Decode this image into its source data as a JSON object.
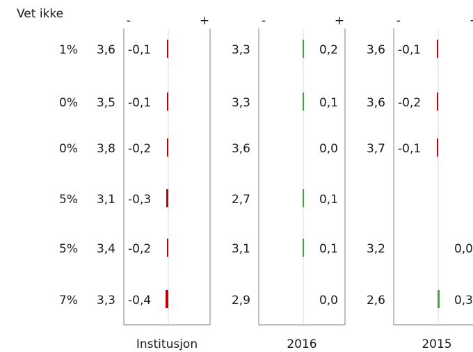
{
  "chart_data": {
    "type": "bar",
    "header_label": "Vet ikke",
    "neg_sign": "-",
    "pos_sign": "+",
    "vet_ikke": [
      "1%",
      "0%",
      "0%",
      "5%",
      "5%",
      "7%"
    ],
    "panels": [
      {
        "name": "Institusjon",
        "scores": [
          "3,6",
          "3,5",
          "3,8",
          "3,1",
          "3,4",
          "3,3"
        ],
        "deltas": [
          -0.1,
          -0.1,
          -0.2,
          -0.3,
          -0.2,
          -0.4
        ],
        "delta_labels": [
          "-0,1",
          "-0,1",
          "-0,2",
          "-0,3",
          "-0,2",
          "-0,4"
        ]
      },
      {
        "name": "2016",
        "scores": [
          "3,3",
          "3,3",
          "3,6",
          "2,7",
          "3,1",
          "2,9"
        ],
        "deltas": [
          0.2,
          0.1,
          0.0,
          0.1,
          0.1,
          0.0
        ],
        "delta_labels": [
          "0,2",
          "0,1",
          "0,0",
          "0,1",
          "0,1",
          "0,0"
        ]
      },
      {
        "name": "2015",
        "scores": [
          "3,6",
          "3,6",
          "3,7",
          null,
          "3,2",
          "2,6"
        ],
        "deltas": [
          -0.1,
          -0.2,
          -0.1,
          null,
          0.0,
          0.3
        ],
        "delta_labels": [
          "-0,1",
          "-0,2",
          "-0,1",
          null,
          "0,0",
          "0,3"
        ]
      }
    ],
    "colors": {
      "negative": "#c00000",
      "positive": "#3aa83a",
      "frame": "#808080",
      "zero_line": "#d8d8ec"
    }
  }
}
